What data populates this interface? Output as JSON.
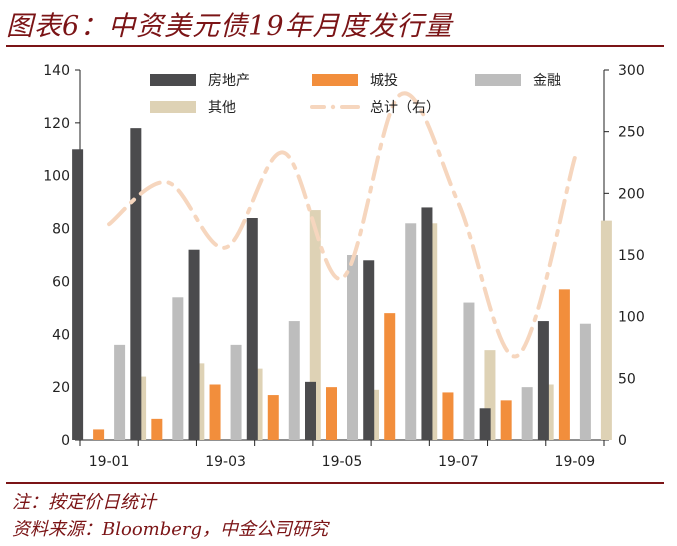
{
  "header": {
    "title": "图表6：中资美元债19年月度发行量"
  },
  "footer": {
    "note": "注：按定价日统计",
    "source": "资料来源：Bloomberg，中金公司研究"
  },
  "colors": {
    "accent": "#7b1416",
    "房地产": "#4b4b4d",
    "城投": "#f28e3c",
    "金融": "#bdbdbd",
    "其他": "#ded2b5",
    "总计（右）": "#f6d6be"
  },
  "chart_data": {
    "type": "bar",
    "categories": [
      "19-01",
      "19-02",
      "19-03",
      "19-04",
      "19-05",
      "19-06",
      "19-07",
      "19-08",
      "19-09"
    ],
    "x_tick_labels": [
      "19-01",
      "19-03",
      "19-05",
      "19-07",
      "19-09"
    ],
    "series": [
      {
        "name": "房地产",
        "type": "bar",
        "axis": "left",
        "values": [
          110,
          118,
          72,
          84,
          22,
          68,
          88,
          12,
          45
        ]
      },
      {
        "name": "城投",
        "type": "bar",
        "axis": "left",
        "values": [
          4,
          8,
          21,
          17,
          20,
          48,
          18,
          15,
          57
        ]
      },
      {
        "name": "金融",
        "type": "bar",
        "axis": "left",
        "values": [
          36,
          54,
          36,
          45,
          70,
          82,
          52,
          20,
          44
        ]
      },
      {
        "name": "其他",
        "type": "bar",
        "axis": "left",
        "values": [
          24,
          29,
          27,
          87,
          19,
          82,
          34,
          21,
          83
        ]
      },
      {
        "name": "总计（右）",
        "type": "line",
        "style": "dash-dot",
        "axis": "right",
        "values": [
          175,
          209,
          156,
          233,
          131,
          280,
          192,
          68,
          229
        ]
      }
    ],
    "y_left": {
      "min": 0,
      "max": 140,
      "ticks": [
        0,
        20,
        40,
        60,
        80,
        100,
        120,
        140
      ]
    },
    "y_right": {
      "min": 0,
      "max": 300,
      "ticks": [
        0,
        50,
        100,
        150,
        200,
        250,
        300
      ]
    },
    "legend_position": "top",
    "grid": false
  }
}
